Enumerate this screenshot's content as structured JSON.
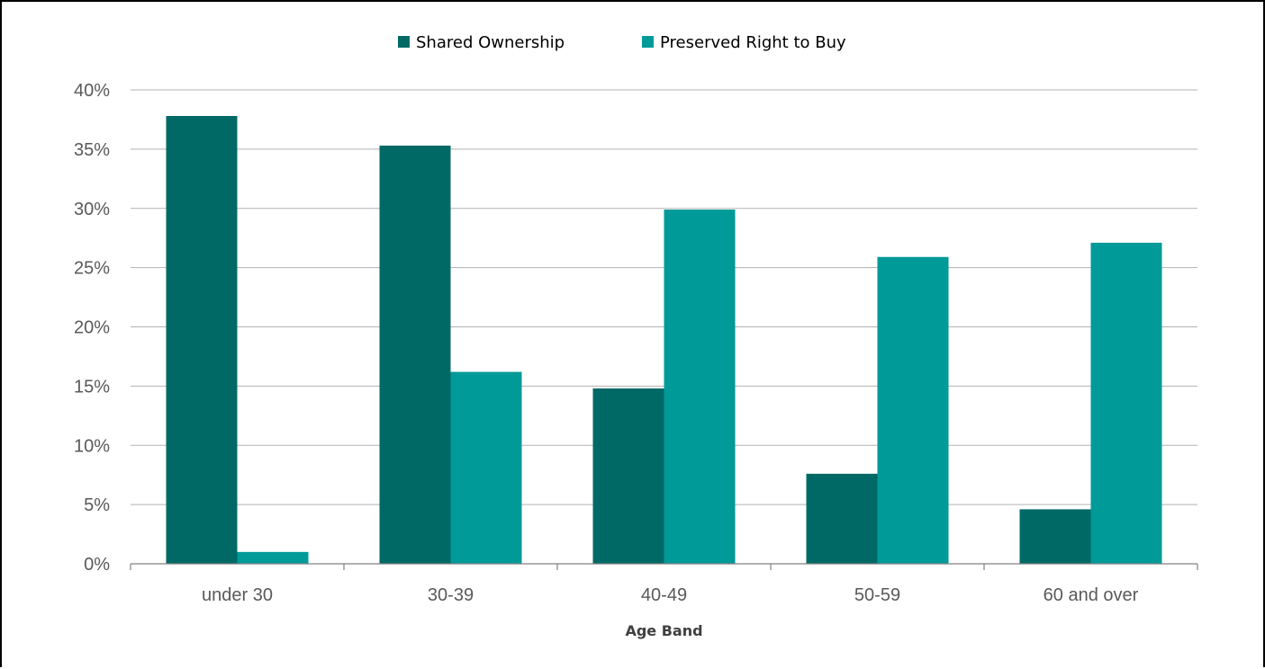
{
  "chart_data": {
    "type": "bar",
    "title": "",
    "xlabel": "Age Band",
    "ylabel": "",
    "categories": [
      "under 30",
      "30-39",
      "40-49",
      "50-59",
      "60 and over"
    ],
    "series": [
      {
        "name": "Shared Ownership",
        "color": "#006966",
        "values": [
          37.8,
          35.3,
          14.8,
          7.6,
          4.6
        ]
      },
      {
        "name": "Preserved Right to Buy",
        "color": "#009A98",
        "values": [
          1.0,
          16.2,
          29.9,
          25.9,
          27.1
        ]
      }
    ],
    "ylim": [
      0,
      40
    ],
    "yticks": [
      "0%",
      "5%",
      "10%",
      "15%",
      "20%",
      "25%",
      "30%",
      "35%",
      "40%"
    ],
    "grid": true,
    "gridline_color": "#B3B3B3",
    "legend_position": "top-center"
  }
}
